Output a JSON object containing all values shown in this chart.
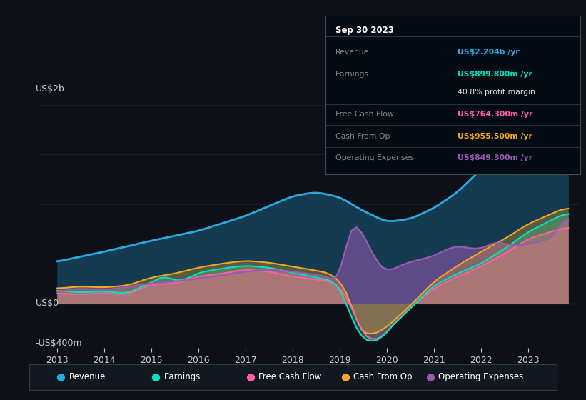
{
  "bg_color": "#0d1117",
  "colors": {
    "revenue": "#29abe2",
    "earnings": "#00e5c0",
    "free_cash_flow": "#ff5fa0",
    "cash_from_op": "#f5a623",
    "operating_expenses": "#9b59b6"
  },
  "tooltip": {
    "date": "Sep 30 2023",
    "revenue_label": "Revenue",
    "revenue_val": "US$2.204b /yr",
    "earnings_label": "Earnings",
    "earnings_val": "US$899.800m /yr",
    "profit_margin": "40.8% profit margin",
    "fcf_label": "Free Cash Flow",
    "fcf_val": "US$764.300m /yr",
    "cfop_label": "Cash From Op",
    "cfop_val": "US$955.500m /yr",
    "opex_label": "Operating Expenses",
    "opex_val": "US$849.300m /yr"
  },
  "legend": [
    {
      "label": "Revenue",
      "color": "#29abe2"
    },
    {
      "label": "Earnings",
      "color": "#00e5c0"
    },
    {
      "label": "Free Cash Flow",
      "color": "#ff5fa0"
    },
    {
      "label": "Cash From Op",
      "color": "#f5a623"
    },
    {
      "label": "Operating Expenses",
      "color": "#9b59b6"
    }
  ],
  "ylim": [
    -0.45,
    2.35
  ],
  "xlim": [
    2012.6,
    2024.1
  ],
  "ytick_labels": [
    "US$2b",
    "US$0",
    "-US$400m"
  ],
  "ytick_vals": [
    2.0,
    0.0,
    -0.4
  ],
  "xtick_labels": [
    "2013",
    "2014",
    "2015",
    "2016",
    "2017",
    "2018",
    "2019",
    "2020",
    "2021",
    "2022",
    "2023"
  ],
  "xtick_vals": [
    2013,
    2014,
    2015,
    2016,
    2017,
    2018,
    2019,
    2020,
    2021,
    2022,
    2023
  ]
}
